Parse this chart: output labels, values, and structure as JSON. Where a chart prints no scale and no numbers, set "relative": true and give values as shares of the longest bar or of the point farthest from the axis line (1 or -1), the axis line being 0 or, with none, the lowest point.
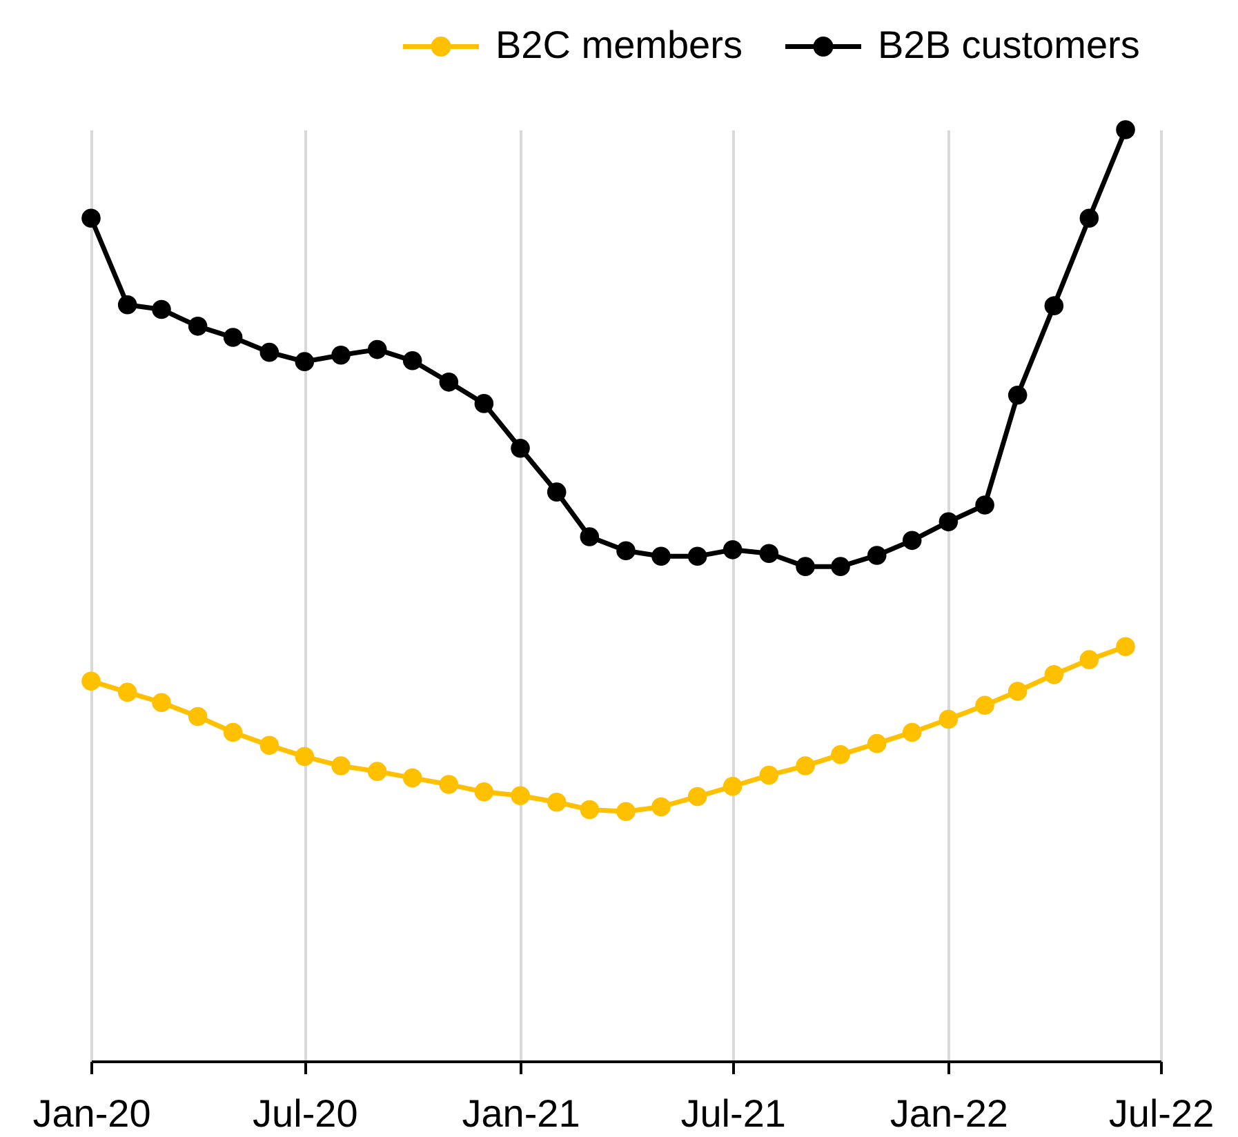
{
  "chart_data": {
    "type": "line",
    "relative": true,
    "grid": "x",
    "legend": "top right",
    "marker": "circle",
    "line_style": "solid",
    "x": [
      "2020-01",
      "2020-02",
      "2020-03",
      "2020-04",
      "2020-05",
      "2020-06",
      "2020-07",
      "2020-08",
      "2020-09",
      "2020-10",
      "2020-11",
      "2020-12",
      "2021-01",
      "2021-02",
      "2021-03",
      "2021-04",
      "2021-05",
      "2021-06",
      "2021-07",
      "2021-08",
      "2021-09",
      "2021-10",
      "2021-11",
      "2021-12",
      "2022-01",
      "2022-02",
      "2022-03",
      "2022-04",
      "2022-05",
      "2022-06"
    ],
    "xlim": [
      "2020-01",
      "2022-07"
    ],
    "xticks": [
      {
        "value": "2020-01",
        "label": "Jan-20"
      },
      {
        "value": "2020-07",
        "label": "Jul-20"
      },
      {
        "value": "2021-01",
        "label": "Jan-21"
      },
      {
        "value": "2021-07",
        "label": "Jul-21"
      },
      {
        "value": "2022-01",
        "label": "Jan-22"
      },
      {
        "value": "2022-07",
        "label": "Jul-22"
      }
    ],
    "series": [
      {
        "name": "B2C members",
        "color": "#ffc000",
        "values": [
          0.408,
          0.396,
          0.385,
          0.37,
          0.353,
          0.339,
          0.327,
          0.317,
          0.311,
          0.304,
          0.297,
          0.289,
          0.285,
          0.278,
          0.27,
          0.268,
          0.273,
          0.284,
          0.295,
          0.307,
          0.317,
          0.329,
          0.341,
          0.353,
          0.367,
          0.382,
          0.397,
          0.415,
          0.431,
          0.445
        ]
      },
      {
        "name": "B2B customers",
        "color": "#000000",
        "values": [
          0.905,
          0.812,
          0.807,
          0.789,
          0.777,
          0.761,
          0.751,
          0.758,
          0.764,
          0.752,
          0.729,
          0.706,
          0.658,
          0.611,
          0.563,
          0.548,
          0.542,
          0.542,
          0.549,
          0.545,
          0.531,
          0.531,
          0.543,
          0.559,
          0.579,
          0.597,
          0.715,
          0.811,
          0.905,
          1
        ]
      }
    ]
  }
}
